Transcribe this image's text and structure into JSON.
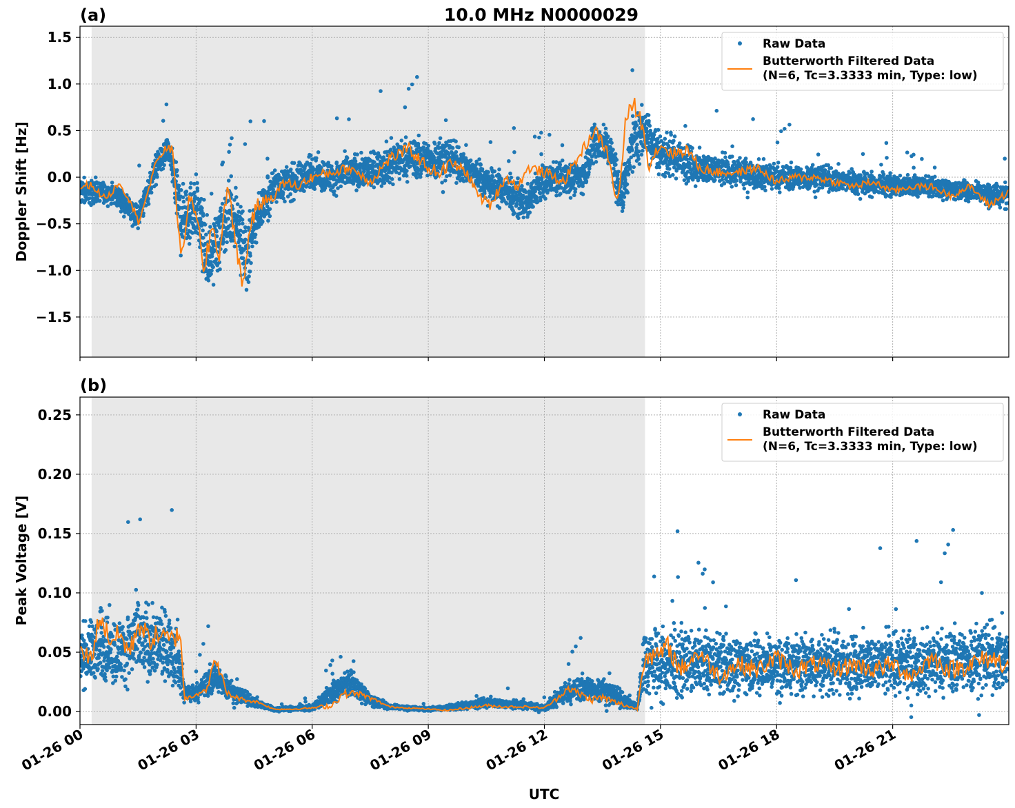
{
  "figure": {
    "title": "10.0 MHz N0000029",
    "xlabel": "UTC"
  },
  "colors": {
    "raw": "#1f77b4",
    "filtered": "#ff7f0e",
    "shade": "#e8e8e8",
    "grid": "#b0b0b0"
  },
  "chart_data": [
    {
      "panel_label": "(a)",
      "type": "scatter",
      "ylabel": "Doppler Shift [Hz]",
      "xlim_hours": [
        0,
        24
      ],
      "ylim": [
        -1.93,
        1.62
      ],
      "x_ticks": [
        "01-26 00",
        "01-26 03",
        "01-26 06",
        "01-26 09",
        "01-26 12",
        "01-26 15",
        "01-26 18",
        "01-26 21"
      ],
      "x_tick_hours": [
        0,
        3,
        6,
        9,
        12,
        15,
        18,
        21
      ],
      "y_ticks": [
        -1.5,
        -1.0,
        -0.5,
        0.0,
        0.5,
        1.0,
        1.5
      ],
      "y_tick_labels": [
        "−1.5",
        "−1.0",
        "−0.5",
        "0.0",
        "0.5",
        "1.0",
        "1.5"
      ],
      "grid": true,
      "legend_position": "top-right",
      "shaded_interval_hours": [
        0.3,
        14.6
      ],
      "series": [
        {
          "name": "Raw Data",
          "kind": "scatter",
          "x_hours": [
            0,
            0.5,
            1,
            1.5,
            2,
            2.3,
            2.6,
            3,
            3.3,
            3.6,
            4,
            4.3,
            4.6,
            5,
            5.5,
            6,
            6.5,
            7,
            7.5,
            8,
            8.5,
            9,
            9.5,
            10,
            10.5,
            11,
            11.5,
            12,
            12.5,
            13,
            13.3,
            13.7,
            14,
            14.3,
            14.6,
            15,
            15.5,
            16,
            17,
            18,
            19,
            20,
            21,
            22,
            23,
            24
          ],
          "center": [
            -0.15,
            -0.15,
            -0.2,
            -0.45,
            0.15,
            0.3,
            -0.45,
            -0.3,
            -0.9,
            -0.6,
            -0.35,
            -0.9,
            -0.4,
            -0.1,
            -0.05,
            0.05,
            0.0,
            0.05,
            0.05,
            0.15,
            0.2,
            0.2,
            0.2,
            0.1,
            -0.05,
            -0.15,
            -0.3,
            -0.05,
            0.0,
            0.0,
            0.4,
            0.3,
            -0.2,
            0.4,
            0.5,
            0.25,
            0.2,
            0.1,
            0.05,
            0.0,
            0.0,
            -0.05,
            -0.1,
            -0.1,
            -0.15,
            -0.2
          ],
          "spread": [
            0.2,
            0.15,
            0.15,
            0.2,
            0.2,
            0.2,
            0.5,
            0.45,
            0.55,
            0.45,
            0.45,
            0.5,
            0.35,
            0.25,
            0.25,
            0.25,
            0.25,
            0.25,
            0.25,
            0.3,
            0.3,
            0.3,
            0.3,
            0.25,
            0.25,
            0.25,
            0.25,
            0.25,
            0.25,
            0.25,
            0.3,
            0.3,
            0.35,
            0.4,
            0.4,
            0.3,
            0.3,
            0.25,
            0.2,
            0.2,
            0.18,
            0.18,
            0.15,
            0.15,
            0.15,
            0.2
          ]
        },
        {
          "name": "Butterworth Filtered Data\n(N=6, Tc=3.3333 min, Type: low)",
          "kind": "line",
          "x_hours": [
            0,
            0.3,
            0.6,
            0.8,
            1.0,
            1.3,
            1.5,
            1.8,
            2.0,
            2.2,
            2.4,
            2.6,
            2.8,
            3.0,
            3.2,
            3.4,
            3.6,
            3.8,
            4.0,
            4.2,
            4.4,
            4.6,
            4.8,
            5.0,
            5.3,
            5.6,
            6.0,
            6.5,
            7.0,
            7.5,
            8.0,
            8.5,
            9.0,
            9.3,
            9.6,
            10.0,
            10.3,
            10.6,
            11.0,
            11.3,
            11.6,
            12.0,
            12.5,
            13.0,
            13.3,
            13.6,
            13.9,
            14.1,
            14.3,
            14.5,
            14.7,
            15.0,
            15.3,
            15.7,
            16.0,
            16.5,
            17.0,
            17.5,
            18.0,
            18.5,
            19.0,
            19.5,
            20.0,
            20.5,
            21.0,
            21.5,
            22.0,
            22.5,
            23.0,
            23.5,
            24.0
          ],
          "values": [
            -0.1,
            -0.08,
            -0.22,
            -0.18,
            -0.05,
            -0.25,
            -0.48,
            -0.1,
            0.2,
            0.3,
            0.3,
            -0.9,
            -0.3,
            -0.3,
            -1.1,
            -0.5,
            -0.85,
            -0.1,
            -0.6,
            -1.2,
            -0.5,
            -0.3,
            -0.25,
            -0.2,
            -0.05,
            -0.1,
            0.0,
            0.05,
            0.1,
            -0.05,
            0.2,
            0.3,
            0.1,
            0.05,
            0.15,
            0.05,
            -0.2,
            -0.3,
            0.0,
            -0.1,
            0.1,
            0.05,
            -0.05,
            0.3,
            0.5,
            0.3,
            -0.3,
            0.6,
            0.8,
            0.6,
            0.15,
            0.35,
            0.25,
            0.3,
            0.1,
            0.05,
            0.05,
            0.1,
            -0.05,
            0.0,
            0.0,
            -0.05,
            -0.1,
            -0.05,
            -0.15,
            -0.1,
            -0.1,
            -0.2,
            -0.1,
            -0.3,
            -0.15
          ]
        }
      ]
    },
    {
      "panel_label": "(b)",
      "type": "scatter",
      "ylabel": "Peak Voltage [V]",
      "xlim_hours": [
        0,
        24
      ],
      "ylim": [
        -0.011,
        0.265
      ],
      "x_ticks": [
        "01-26 00",
        "01-26 03",
        "01-26 06",
        "01-26 09",
        "01-26 12",
        "01-26 15",
        "01-26 18",
        "01-26 21"
      ],
      "x_tick_hours": [
        0,
        3,
        6,
        9,
        12,
        15,
        18,
        21
      ],
      "y_ticks": [
        0.0,
        0.05,
        0.1,
        0.15,
        0.2,
        0.25
      ],
      "y_tick_labels": [
        "0.00",
        "0.05",
        "0.10",
        "0.15",
        "0.20",
        "0.25"
      ],
      "grid": true,
      "legend_position": "top-right",
      "shaded_interval_hours": [
        0.3,
        14.6
      ],
      "series": [
        {
          "name": "Raw Data",
          "kind": "scatter",
          "x_hours": [
            0,
            0.5,
            1,
            1.5,
            2,
            2.5,
            2.7,
            3,
            3.5,
            4,
            4.5,
            5,
            6,
            6.5,
            7,
            7.5,
            8,
            9,
            10,
            10.5,
            11,
            11.5,
            12,
            12.5,
            13,
            13.5,
            14,
            14.4,
            14.6,
            15,
            16,
            17,
            18,
            19,
            20,
            21,
            22,
            23,
            24
          ],
          "center": [
            0.045,
            0.055,
            0.05,
            0.06,
            0.055,
            0.05,
            0.015,
            0.015,
            0.03,
            0.015,
            0.008,
            0.002,
            0.003,
            0.015,
            0.025,
            0.01,
            0.004,
            0.002,
            0.005,
            0.008,
            0.006,
            0.005,
            0.003,
            0.015,
            0.02,
            0.018,
            0.01,
            0.004,
            0.045,
            0.04,
            0.04,
            0.04,
            0.04,
            0.04,
            0.04,
            0.04,
            0.04,
            0.045,
            0.045
          ],
          "spread": [
            0.035,
            0.04,
            0.04,
            0.045,
            0.04,
            0.04,
            0.01,
            0.01,
            0.02,
            0.01,
            0.006,
            0.002,
            0.003,
            0.012,
            0.015,
            0.008,
            0.003,
            0.002,
            0.004,
            0.006,
            0.005,
            0.004,
            0.003,
            0.012,
            0.015,
            0.014,
            0.01,
            0.004,
            0.04,
            0.04,
            0.035,
            0.035,
            0.035,
            0.035,
            0.035,
            0.035,
            0.035,
            0.04,
            0.04
          ]
        },
        {
          "name": "Butterworth Filtered Data\n(N=6, Tc=3.3333 min, Type: low)",
          "kind": "line",
          "x_hours": [
            0,
            0.3,
            0.5,
            0.8,
            1.0,
            1.3,
            1.5,
            1.8,
            2.0,
            2.3,
            2.6,
            2.7,
            3.0,
            3.3,
            3.5,
            3.8,
            4.2,
            4.6,
            5.0,
            5.5,
            6.0,
            6.5,
            6.8,
            7.2,
            7.6,
            8.0,
            8.5,
            9.0,
            9.5,
            10.0,
            10.5,
            11.0,
            11.5,
            12.0,
            12.3,
            12.6,
            12.9,
            13.2,
            13.5,
            13.8,
            14.1,
            14.4,
            14.6,
            14.9,
            15.2,
            15.5,
            16.0,
            16.5,
            17.0,
            17.5,
            18.0,
            18.5,
            19.0,
            19.5,
            20.0,
            20.5,
            21.0,
            21.5,
            22.0,
            22.5,
            23.0,
            23.5,
            24.0
          ],
          "values": [
            0.05,
            0.045,
            0.08,
            0.06,
            0.065,
            0.05,
            0.075,
            0.06,
            0.065,
            0.06,
            0.065,
            0.01,
            0.015,
            0.02,
            0.045,
            0.015,
            0.01,
            0.008,
            0.002,
            0.002,
            0.003,
            0.005,
            0.015,
            0.015,
            0.01,
            0.004,
            0.003,
            0.002,
            0.001,
            0.003,
            0.005,
            0.004,
            0.004,
            0.003,
            0.01,
            0.02,
            0.015,
            0.01,
            0.012,
            0.008,
            0.005,
            0.002,
            0.05,
            0.045,
            0.055,
            0.035,
            0.05,
            0.03,
            0.04,
            0.035,
            0.045,
            0.035,
            0.04,
            0.035,
            0.04,
            0.035,
            0.04,
            0.03,
            0.045,
            0.035,
            0.04,
            0.045,
            0.04
          ]
        }
      ]
    }
  ]
}
